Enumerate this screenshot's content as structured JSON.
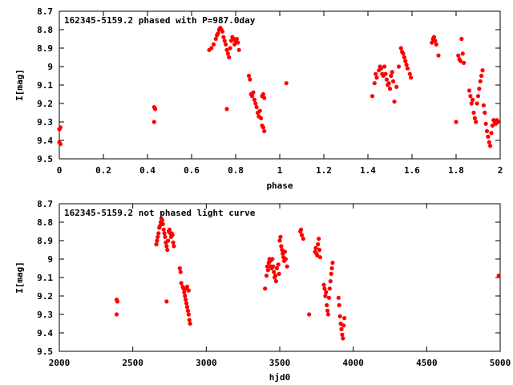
{
  "chart_data": [
    {
      "type": "scatter",
      "title": "162345-5159.2 phased with P=987.0day",
      "xlabel": "phase",
      "ylabel": "I[mag]",
      "xlim": [
        0,
        2
      ],
      "ylim": [
        9.5,
        8.7
      ],
      "y_inverted": true,
      "grid": false,
      "x_ticks": [
        "0",
        "0.2",
        "0.4",
        "0.6",
        "0.8",
        "1",
        "1.2",
        "1.4",
        "1.6",
        "1.8",
        "2"
      ],
      "y_ticks": [
        "8.7",
        "8.8",
        "8.9",
        "9",
        "9.1",
        "9.2",
        "9.3",
        "9.4",
        "9.5"
      ],
      "series": [
        {
          "color": "#ff0000",
          "points": [
            [
              0.0,
              9.34
            ],
            [
              0.005,
              9.33
            ],
            [
              0.0,
              9.41
            ],
            [
              0.005,
              9.42
            ],
            [
              0.43,
              9.22
            ],
            [
              0.435,
              9.23
            ],
            [
              0.43,
              9.3
            ],
            [
              0.68,
              8.91
            ],
            [
              0.69,
              8.9
            ],
            [
              0.7,
              8.88
            ],
            [
              0.71,
              8.85
            ],
            [
              0.715,
              8.83
            ],
            [
              0.72,
              8.82
            ],
            [
              0.725,
              8.8
            ],
            [
              0.73,
              8.79
            ],
            [
              0.735,
              8.8
            ],
            [
              0.74,
              8.81
            ],
            [
              0.745,
              8.84
            ],
            [
              0.75,
              8.86
            ],
            [
              0.755,
              8.88
            ],
            [
              0.76,
              8.91
            ],
            [
              0.765,
              8.93
            ],
            [
              0.77,
              8.95
            ],
            [
              0.775,
              8.9
            ],
            [
              0.78,
              8.86
            ],
            [
              0.785,
              8.84
            ],
            [
              0.79,
              8.85
            ],
            [
              0.795,
              8.88
            ],
            [
              0.8,
              8.86
            ],
            [
              0.805,
              8.85
            ],
            [
              0.81,
              8.87
            ],
            [
              0.815,
              8.91
            ],
            [
              0.76,
              9.23
            ],
            [
              0.86,
              9.05
            ],
            [
              0.865,
              9.07
            ],
            [
              0.87,
              9.15
            ],
            [
              0.875,
              9.16
            ],
            [
              0.88,
              9.14
            ],
            [
              0.885,
              9.18
            ],
            [
              0.89,
              9.2
            ],
            [
              0.895,
              9.22
            ],
            [
              0.9,
              9.25
            ],
            [
              0.905,
              9.27
            ],
            [
              0.91,
              9.24
            ],
            [
              0.915,
              9.28
            ],
            [
              0.92,
              9.32
            ],
            [
              0.925,
              9.33
            ],
            [
              0.93,
              9.35
            ],
            [
              0.93,
              9.17
            ],
            [
              0.925,
              9.15
            ],
            [
              0.92,
              9.16
            ],
            [
              1.03,
              9.09
            ],
            [
              1.42,
              9.16
            ],
            [
              1.43,
              9.09
            ],
            [
              1.435,
              9.04
            ],
            [
              1.44,
              9.06
            ],
            [
              1.45,
              9.02
            ],
            [
              1.455,
              9.0
            ],
            [
              1.46,
              9.01
            ],
            [
              1.465,
              9.04
            ],
            [
              1.47,
              9.05
            ],
            [
              1.475,
              9.0
            ],
            [
              1.48,
              9.04
            ],
            [
              1.485,
              9.07
            ],
            [
              1.49,
              9.1
            ],
            [
              1.495,
              9.09
            ],
            [
              1.5,
              9.12
            ],
            [
              1.505,
              9.05
            ],
            [
              1.51,
              9.03
            ],
            [
              1.515,
              9.08
            ],
            [
              1.52,
              9.19
            ],
            [
              1.53,
              9.11
            ],
            [
              1.54,
              9.0
            ],
            [
              1.55,
              8.9
            ],
            [
              1.555,
              8.92
            ],
            [
              1.56,
              8.93
            ],
            [
              1.565,
              8.95
            ],
            [
              1.57,
              8.97
            ],
            [
              1.575,
              8.99
            ],
            [
              1.58,
              9.01
            ],
            [
              1.59,
              9.04
            ],
            [
              1.595,
              9.06
            ],
            [
              1.69,
              8.87
            ],
            [
              1.695,
              8.85
            ],
            [
              1.7,
              8.84
            ],
            [
              1.705,
              8.86
            ],
            [
              1.71,
              8.88
            ],
            [
              1.72,
              8.94
            ],
            [
              1.8,
              9.3
            ],
            [
              1.81,
              8.94
            ],
            [
              1.815,
              8.96
            ],
            [
              1.82,
              8.97
            ],
            [
              1.825,
              8.85
            ],
            [
              1.83,
              8.93
            ],
            [
              1.835,
              8.98
            ],
            [
              1.86,
              9.13
            ],
            [
              1.865,
              9.16
            ],
            [
              1.87,
              9.2
            ],
            [
              1.875,
              9.18
            ],
            [
              1.88,
              9.25
            ],
            [
              1.885,
              9.28
            ],
            [
              1.89,
              9.3
            ],
            [
              1.895,
              9.2
            ],
            [
              1.9,
              9.16
            ],
            [
              1.905,
              9.12
            ],
            [
              1.91,
              9.08
            ],
            [
              1.915,
              9.05
            ],
            [
              1.92,
              9.02
            ],
            [
              1.925,
              9.21
            ],
            [
              1.93,
              9.25
            ],
            [
              1.935,
              9.31
            ],
            [
              1.94,
              9.35
            ],
            [
              1.945,
              9.38
            ],
            [
              1.95,
              9.41
            ],
            [
              1.955,
              9.43
            ],
            [
              1.96,
              9.36
            ],
            [
              1.965,
              9.32
            ],
            [
              1.97,
              9.29
            ],
            [
              1.975,
              9.3
            ],
            [
              1.98,
              9.31
            ],
            [
              1.985,
              9.29
            ],
            [
              1.99,
              9.3
            ]
          ]
        }
      ]
    },
    {
      "type": "scatter",
      "title": "162345-5159.2 not phased light curve",
      "xlabel": "hjd0",
      "ylabel": "I[mag]",
      "xlim": [
        2000,
        5000
      ],
      "ylim": [
        9.5,
        8.7
      ],
      "y_inverted": true,
      "grid": false,
      "x_ticks": [
        "2000",
        "2500",
        "3000",
        "3500",
        "4000",
        "4500",
        "5000"
      ],
      "y_ticks": [
        "8.7",
        "8.8",
        "8.9",
        "9",
        "9.1",
        "9.2",
        "9.3",
        "9.4",
        "9.5"
      ],
      "series": [
        {
          "color": "#ff0000",
          "points": [
            [
              2390,
              9.22
            ],
            [
              2395,
              9.23
            ],
            [
              2390,
              9.3
            ],
            [
              2660,
              8.92
            ],
            [
              2665,
              8.9
            ],
            [
              2670,
              8.88
            ],
            [
              2675,
              8.86
            ],
            [
              2680,
              8.83
            ],
            [
              2685,
              8.82
            ],
            [
              2690,
              8.8
            ],
            [
              2695,
              8.78
            ],
            [
              2700,
              8.79
            ],
            [
              2705,
              8.81
            ],
            [
              2710,
              8.84
            ],
            [
              2715,
              8.86
            ],
            [
              2720,
              8.88
            ],
            [
              2725,
              8.91
            ],
            [
              2730,
              8.93
            ],
            [
              2735,
              8.95
            ],
            [
              2740,
              8.9
            ],
            [
              2745,
              8.85
            ],
            [
              2750,
              8.84
            ],
            [
              2755,
              8.86
            ],
            [
              2760,
              8.88
            ],
            [
              2765,
              8.86
            ],
            [
              2770,
              8.87
            ],
            [
              2775,
              8.91
            ],
            [
              2780,
              8.93
            ],
            [
              2730,
              9.23
            ],
            [
              2820,
              9.05
            ],
            [
              2825,
              9.07
            ],
            [
              2830,
              9.13
            ],
            [
              2840,
              9.15
            ],
            [
              2845,
              9.16
            ],
            [
              2850,
              9.18
            ],
            [
              2855,
              9.2
            ],
            [
              2860,
              9.22
            ],
            [
              2865,
              9.24
            ],
            [
              2870,
              9.26
            ],
            [
              2875,
              9.28
            ],
            [
              2880,
              9.3
            ],
            [
              2885,
              9.33
            ],
            [
              2890,
              9.35
            ],
            [
              2880,
              9.17
            ],
            [
              2870,
              9.15
            ],
            [
              2860,
              9.16
            ],
            [
              3400,
              9.16
            ],
            [
              3410,
              9.09
            ],
            [
              3415,
              9.04
            ],
            [
              3420,
              9.06
            ],
            [
              3425,
              9.02
            ],
            [
              3430,
              9.0
            ],
            [
              3435,
              9.01
            ],
            [
              3440,
              9.04
            ],
            [
              3445,
              9.05
            ],
            [
              3450,
              9.0
            ],
            [
              3455,
              9.04
            ],
            [
              3460,
              9.07
            ],
            [
              3465,
              9.1
            ],
            [
              3470,
              9.09
            ],
            [
              3475,
              9.12
            ],
            [
              3480,
              9.05
            ],
            [
              3490,
              9.03
            ],
            [
              3495,
              9.08
            ],
            [
              3500,
              8.9
            ],
            [
              3505,
              8.88
            ],
            [
              3510,
              8.93
            ],
            [
              3515,
              8.95
            ],
            [
              3520,
              8.97
            ],
            [
              3525,
              8.99
            ],
            [
              3530,
              9.01
            ],
            [
              3535,
              8.96
            ],
            [
              3540,
              9.0
            ],
            [
              3550,
              9.04
            ],
            [
              3640,
              8.85
            ],
            [
              3645,
              8.84
            ],
            [
              3650,
              8.87
            ],
            [
              3660,
              8.89
            ],
            [
              3700,
              9.3
            ],
            [
              3740,
              8.96
            ],
            [
              3745,
              8.94
            ],
            [
              3750,
              8.97
            ],
            [
              3755,
              8.98
            ],
            [
              3760,
              8.92
            ],
            [
              3765,
              8.89
            ],
            [
              3770,
              8.95
            ],
            [
              3775,
              8.99
            ],
            [
              3800,
              9.14
            ],
            [
              3805,
              9.16
            ],
            [
              3810,
              9.2
            ],
            [
              3815,
              9.18
            ],
            [
              3820,
              9.25
            ],
            [
              3825,
              9.28
            ],
            [
              3830,
              9.3
            ],
            [
              3835,
              9.21
            ],
            [
              3840,
              9.16
            ],
            [
              3845,
              9.12
            ],
            [
              3850,
              9.08
            ],
            [
              3855,
              9.05
            ],
            [
              3860,
              9.02
            ],
            [
              3900,
              9.21
            ],
            [
              3905,
              9.25
            ],
            [
              3910,
              9.31
            ],
            [
              3915,
              9.35
            ],
            [
              3920,
              9.38
            ],
            [
              3925,
              9.41
            ],
            [
              3930,
              9.43
            ],
            [
              3935,
              9.36
            ],
            [
              3940,
              9.32
            ],
            [
              4990,
              9.09
            ]
          ]
        }
      ]
    }
  ]
}
